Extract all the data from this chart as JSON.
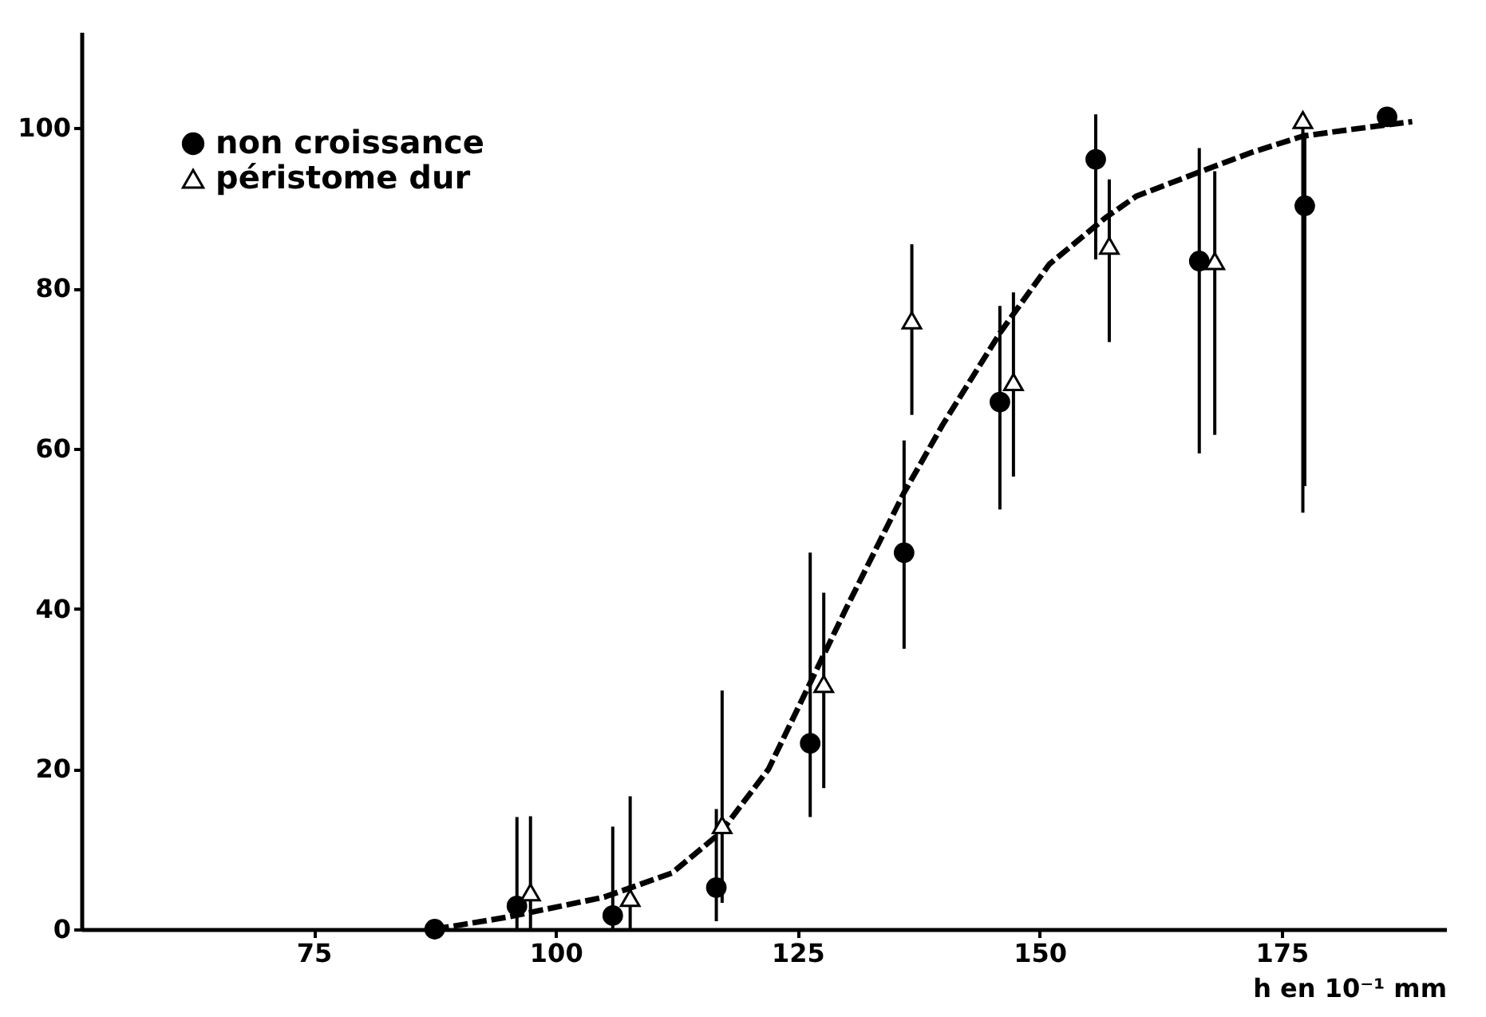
{
  "chart_data": {
    "type": "scatter",
    "xlabel": "h en 10⁻¹ mm",
    "xlim": [
      51,
      192
    ],
    "ylim": [
      0,
      112
    ],
    "xticks": [
      75,
      100,
      125,
      150,
      175
    ],
    "yticks": [
      0,
      20,
      40,
      60,
      80,
      100
    ],
    "grid": false,
    "legend": "top left",
    "series": [
      {
        "name": "non croissance",
        "color": "#000000",
        "marker": "circle",
        "x": [
          87.5,
          96,
          105.9,
          116.6,
          126.3,
          136,
          145.9,
          155.8,
          166.5,
          177.4,
          185.9
        ],
        "values": [
          0,
          2.9,
          1.7,
          5.2,
          23.2,
          47,
          65.8,
          96.1,
          83.4,
          90.3,
          101.4
        ],
        "errors": [
          null,
          [
            0,
            14
          ],
          [
            0,
            12.8
          ],
          [
            1,
            15
          ],
          [
            14,
            47
          ],
          [
            35,
            61
          ],
          [
            52.4,
            77.8
          ],
          [
            83.6,
            101.7
          ],
          [
            59.4,
            97.5
          ],
          [
            55.3,
            99.4
          ],
          null
        ]
      },
      {
        "name": "péristome dur",
        "color": "#000000",
        "marker": "triangle",
        "x": [
          97.4,
          107.7,
          117.2,
          127.7,
          136.8,
          147.3,
          157.2,
          168.1,
          177.2
        ],
        "values": [
          4.6,
          3.9,
          13,
          30.6,
          76,
          68.3,
          85.3,
          83.4,
          101
        ],
        "errors": [
          [
            0,
            14.1
          ],
          [
            0,
            16.6
          ],
          [
            3.3,
            29.8
          ],
          [
            17.6,
            42
          ],
          [
            64.2,
            85.5
          ],
          [
            56.5,
            79.5
          ],
          [
            73.3,
            93.6
          ],
          [
            61.7,
            94.6
          ],
          [
            52,
            101
          ]
        ]
      },
      {
        "type": "line",
        "color": "#000000",
        "line_style": "dashed",
        "x": [
          87.5,
          95,
          105,
          112,
          117,
          122,
          126,
          130,
          136,
          140,
          146,
          151,
          156.8,
          160,
          166.7,
          172,
          177.2,
          182,
          188.5
        ],
        "values": [
          0,
          1.5,
          4,
          7,
          12,
          20,
          30,
          40,
          54.5,
          63,
          74.6,
          83,
          88.8,
          91.5,
          94.6,
          97,
          99,
          99.8,
          100.8
        ]
      }
    ]
  }
}
